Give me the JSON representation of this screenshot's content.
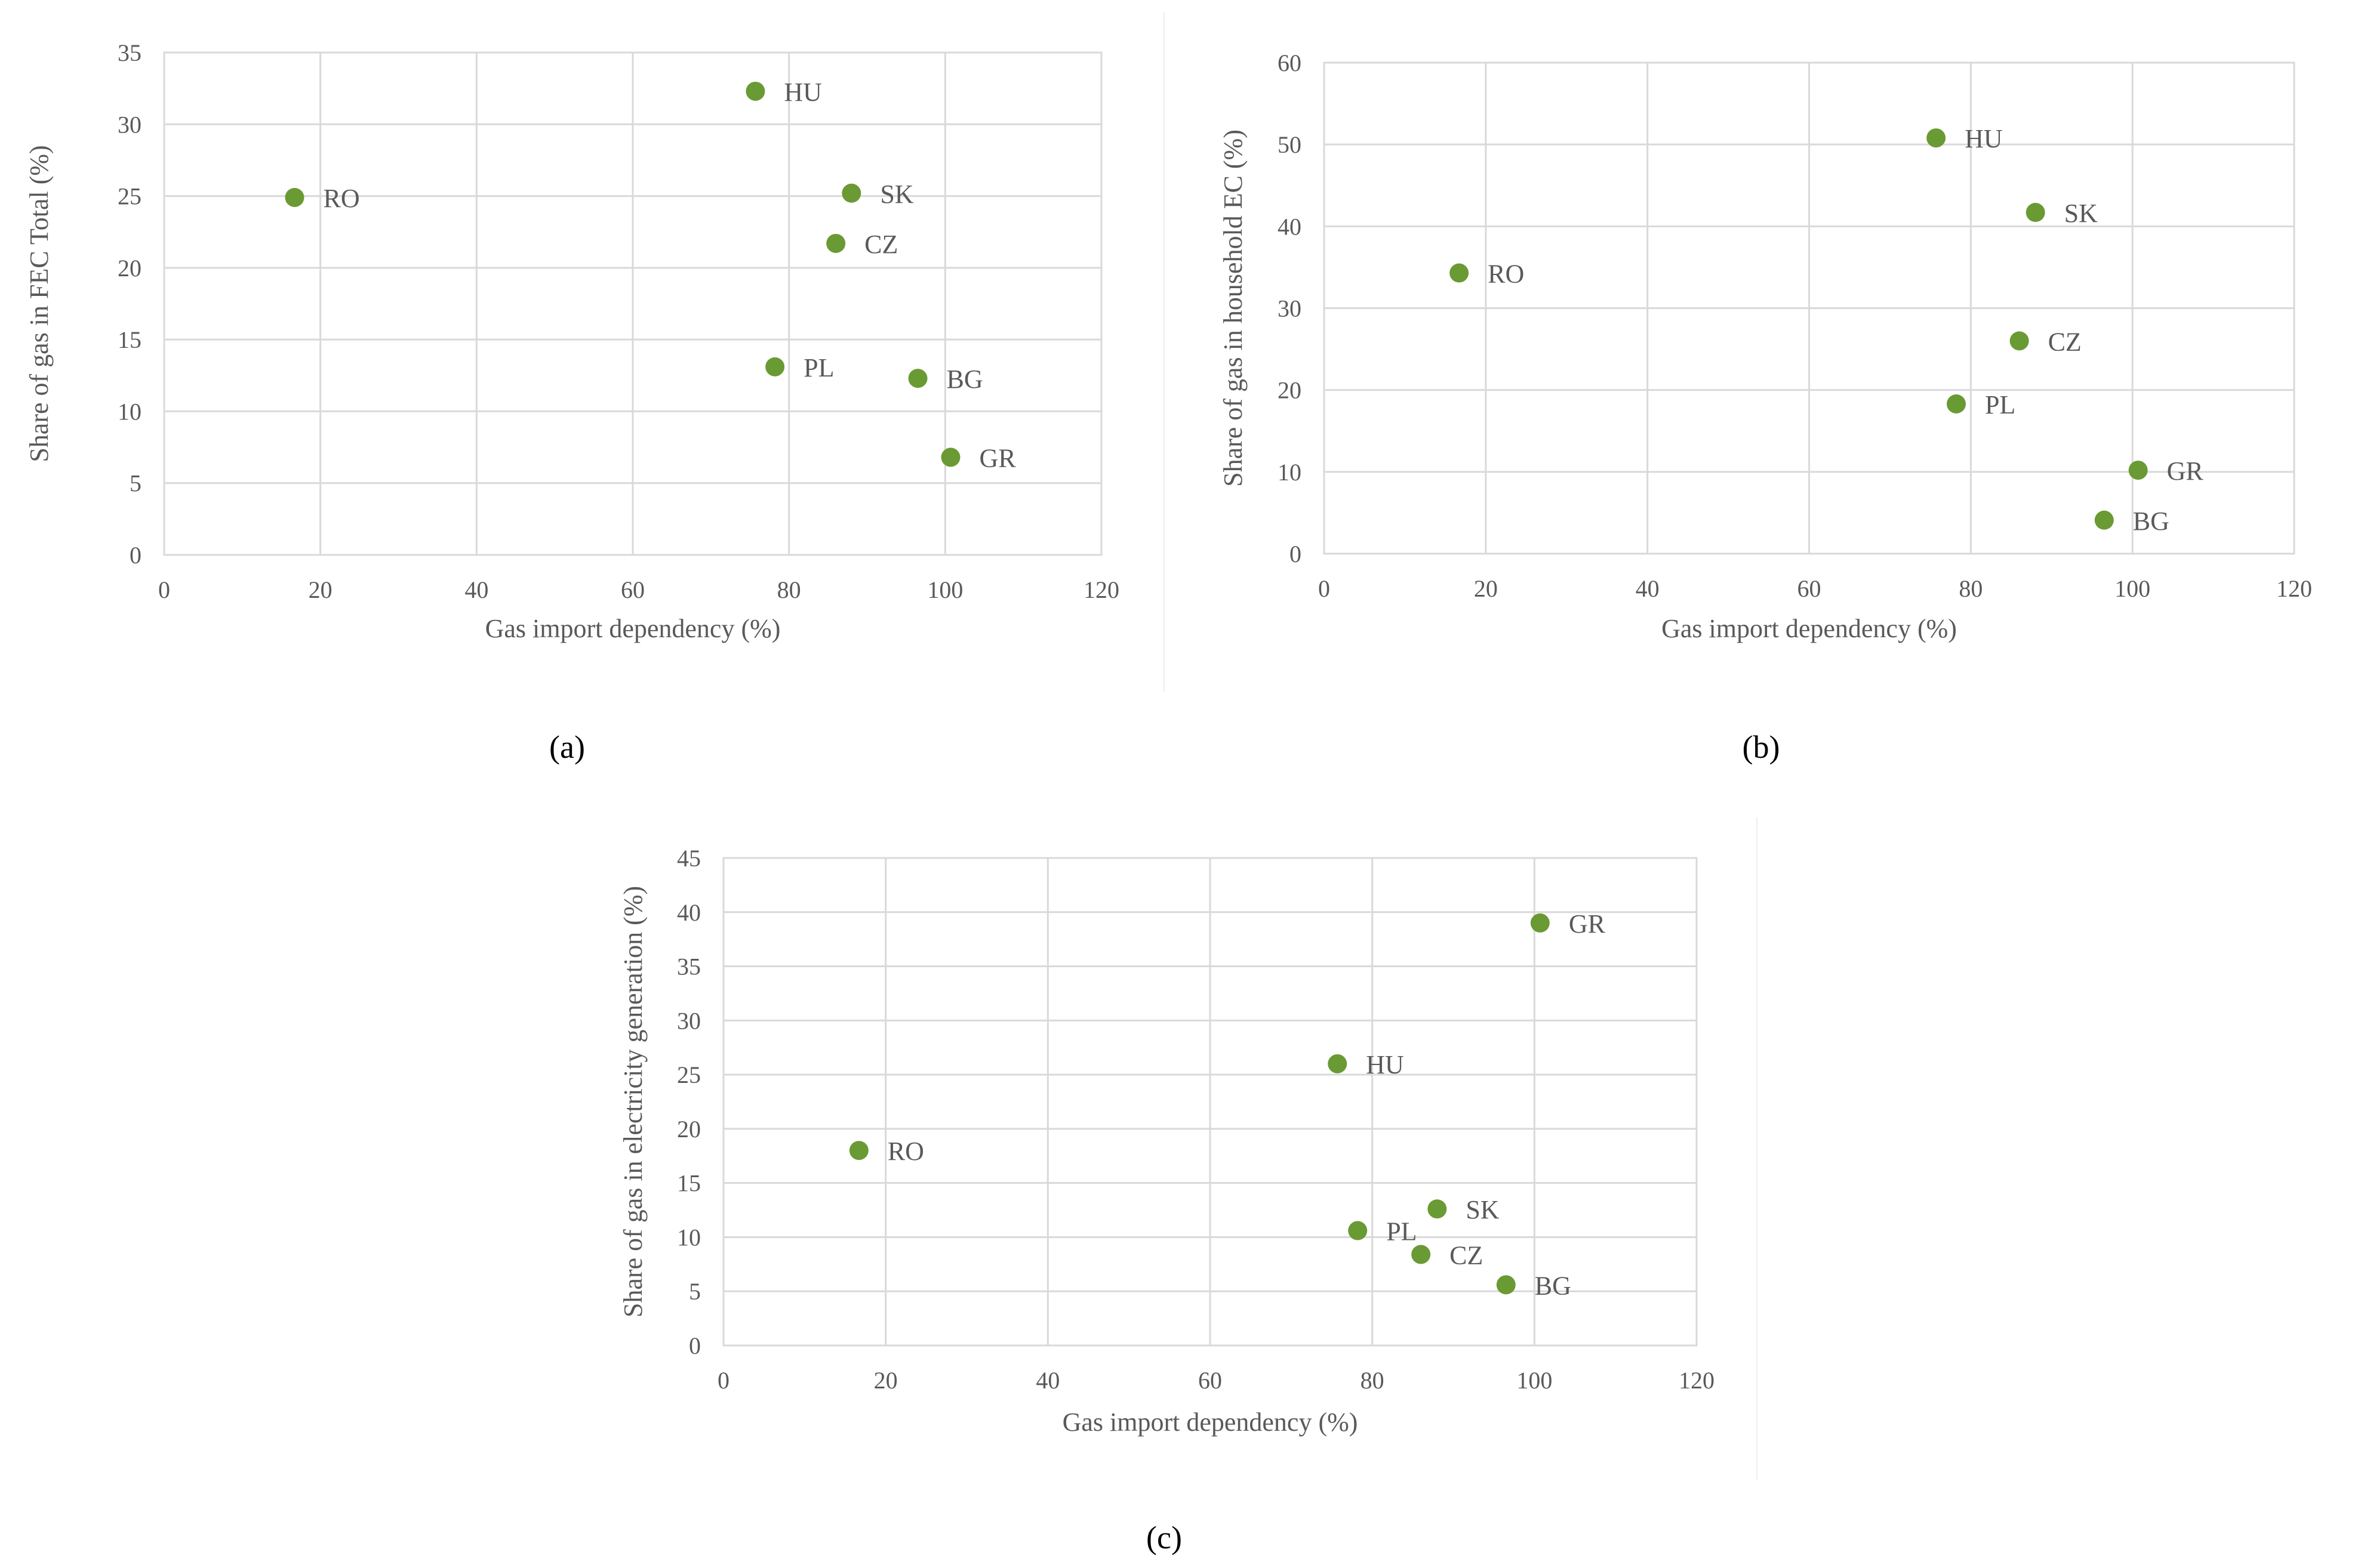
{
  "chart_data": [
    {
      "id": "a",
      "type": "scatter",
      "caption": "(a)",
      "xlabel": "Gas import dependency (%)",
      "ylabel": "Share of gas in FEC Total (%)",
      "xlim": [
        0,
        120
      ],
      "ylim": [
        0,
        35
      ],
      "xticks": [
        0,
        20,
        40,
        60,
        80,
        100,
        120
      ],
      "yticks": [
        0,
        5,
        10,
        15,
        20,
        25,
        30,
        35
      ],
      "grid": true,
      "color": "#6a9a33",
      "points": [
        {
          "label": "RO",
          "x": 16.7,
          "y": 24.9
        },
        {
          "label": "HU",
          "x": 75.7,
          "y": 32.3
        },
        {
          "label": "SK",
          "x": 88.0,
          "y": 25.2
        },
        {
          "label": "CZ",
          "x": 86.0,
          "y": 21.7
        },
        {
          "label": "PL",
          "x": 78.2,
          "y": 13.1
        },
        {
          "label": "BG",
          "x": 96.5,
          "y": 12.3
        },
        {
          "label": "GR",
          "x": 100.7,
          "y": 6.8
        }
      ]
    },
    {
      "id": "b",
      "type": "scatter",
      "caption": "(b)",
      "xlabel": "Gas import dependency (%)",
      "ylabel": "Share of gas in household EC (%)",
      "xlim": [
        0,
        120
      ],
      "ylim": [
        0,
        60
      ],
      "xticks": [
        0,
        20,
        40,
        60,
        80,
        100,
        120
      ],
      "yticks": [
        0,
        10,
        20,
        30,
        40,
        50,
        60
      ],
      "grid": true,
      "color": "#6a9a33",
      "points": [
        {
          "label": "HU",
          "x": 75.7,
          "y": 50.8
        },
        {
          "label": "SK",
          "x": 88.0,
          "y": 41.7
        },
        {
          "label": "RO",
          "x": 16.7,
          "y": 34.3
        },
        {
          "label": "CZ",
          "x": 86.0,
          "y": 26.0
        },
        {
          "label": "PL",
          "x": 78.2,
          "y": 18.3
        },
        {
          "label": "GR",
          "x": 100.7,
          "y": 10.2
        },
        {
          "label": "BG",
          "x": 96.5,
          "y": 4.1
        }
      ]
    },
    {
      "id": "c",
      "type": "scatter",
      "caption": "(c)",
      "xlabel": "Gas import dependency (%)",
      "ylabel": "Share of gas in electricity generation (%)",
      "xlim": [
        0,
        120
      ],
      "ylim": [
        0,
        45
      ],
      "xticks": [
        0,
        20,
        40,
        60,
        80,
        100,
        120
      ],
      "yticks": [
        0,
        5,
        10,
        15,
        20,
        25,
        30,
        35,
        40,
        45
      ],
      "grid": true,
      "color": "#6a9a33",
      "points": [
        {
          "label": "GR",
          "x": 100.7,
          "y": 39.0
        },
        {
          "label": "HU",
          "x": 75.7,
          "y": 26.0
        },
        {
          "label": "RO",
          "x": 16.7,
          "y": 18.0
        },
        {
          "label": "SK",
          "x": 88.0,
          "y": 12.6
        },
        {
          "label": "PL",
          "x": 78.2,
          "y": 10.6
        },
        {
          "label": "CZ",
          "x": 86.0,
          "y": 8.4
        },
        {
          "label": "BG",
          "x": 96.5,
          "y": 5.6
        }
      ]
    }
  ]
}
